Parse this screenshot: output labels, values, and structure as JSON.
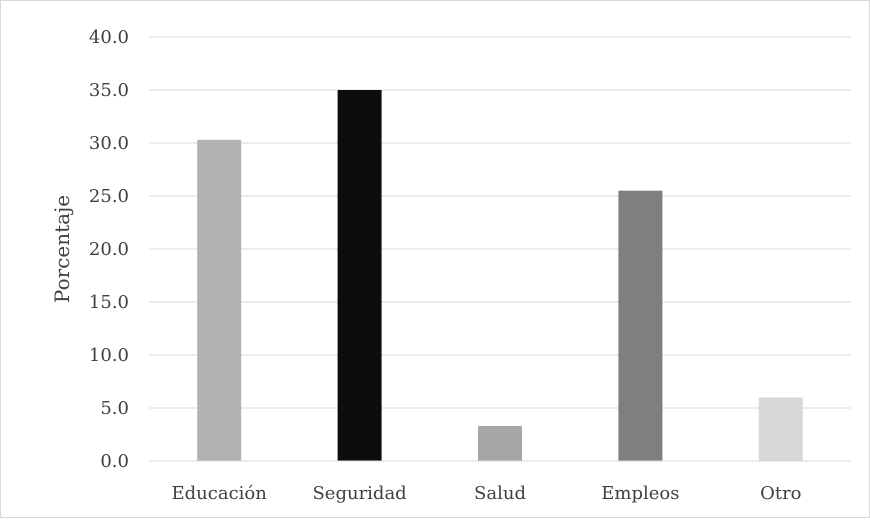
{
  "chart_data": {
    "type": "bar",
    "title": "",
    "xlabel": "",
    "ylabel": "Porcentaje",
    "categories": [
      "Educación",
      "Seguridad",
      "Salud",
      "Empleos",
      "Otro"
    ],
    "values": [
      30.3,
      35.0,
      3.3,
      25.5,
      6.0
    ],
    "bar_colors": [
      "#b2b2b2",
      "#0d0d0d",
      "#a6a6a6",
      "#7f7f7f",
      "#d8d8d8"
    ],
    "ylim": [
      0,
      40
    ],
    "yticks": [
      "0.0",
      "5.0",
      "10.0",
      "15.0",
      "20.0",
      "25.0",
      "30.0",
      "35.0",
      "40.0"
    ],
    "grid": true,
    "legend": "none"
  }
}
